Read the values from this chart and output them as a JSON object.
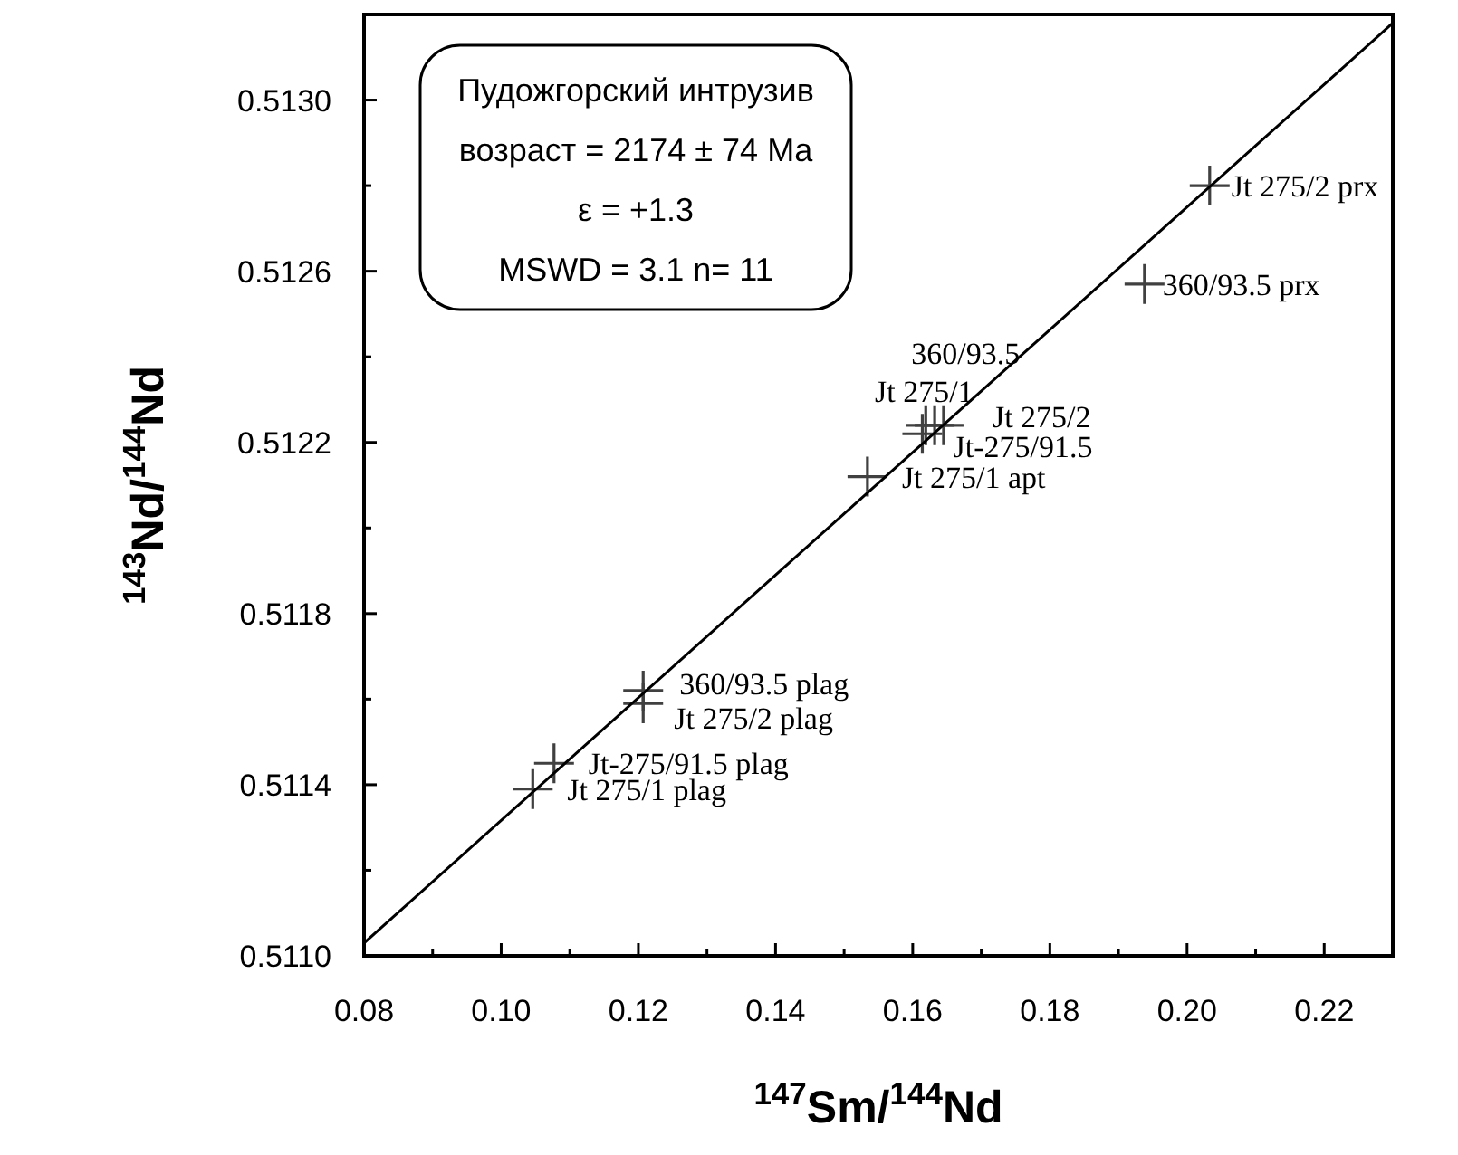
{
  "chart_data": {
    "type": "scatter",
    "xlabel": "$^{147}$Sm/$^{144}$Nd",
    "ylabel": "$^{143}$Nd/$^{144}$Nd",
    "marker": "cross",
    "grid": false,
    "xlim": [
      0.08,
      0.23
    ],
    "ylim": [
      0.511,
      0.5132
    ],
    "xticks": [
      {
        "value": 0.08,
        "label": "0.08"
      },
      {
        "value": 0.09,
        "label": null
      },
      {
        "value": 0.1,
        "label": "0.10"
      },
      {
        "value": 0.11,
        "label": null
      },
      {
        "value": 0.12,
        "label": "0.12"
      },
      {
        "value": 0.13,
        "label": null
      },
      {
        "value": 0.14,
        "label": "0.14"
      },
      {
        "value": 0.15,
        "label": null
      },
      {
        "value": 0.16,
        "label": "0.16"
      },
      {
        "value": 0.17,
        "label": null
      },
      {
        "value": 0.18,
        "label": "0.18"
      },
      {
        "value": 0.19,
        "label": null
      },
      {
        "value": 0.2,
        "label": "0.20"
      },
      {
        "value": 0.21,
        "label": null
      },
      {
        "value": 0.22,
        "label": "0.22"
      }
    ],
    "yticks": [
      {
        "value": 0.511,
        "label": "0.5110"
      },
      {
        "value": 0.5112,
        "label": null
      },
      {
        "value": 0.5114,
        "label": "0.5114"
      },
      {
        "value": 0.5116,
        "label": null
      },
      {
        "value": 0.5118,
        "label": "0.5118"
      },
      {
        "value": 0.512,
        "label": null
      },
      {
        "value": 0.5122,
        "label": "0.5122"
      },
      {
        "value": 0.5124,
        "label": null
      },
      {
        "value": 0.5126,
        "label": "0.5126"
      },
      {
        "value": 0.5128,
        "label": null
      },
      {
        "value": 0.513,
        "label": "0.5130"
      },
      {
        "value": 0.5132,
        "label": null
      }
    ],
    "series": [
      {
        "color": "#404040",
        "x": [
          0.2033,
          0.1938,
          0.1619,
          0.1632,
          0.1645,
          0.1614,
          0.1534,
          0.1207,
          0.1207,
          0.1077,
          0.1046
        ],
        "values": [
          0.5128,
          0.51257,
          0.51224,
          0.51224,
          0.51224,
          0.51222,
          0.51212,
          0.51162,
          0.51159,
          0.51145,
          0.51139
        ]
      },
      {
        "type": "line",
        "marker": "none",
        "color": "#000000",
        "x": [
          0.08,
          0.23
        ],
        "values": [
          0.51103,
          0.51318
        ]
      }
    ],
    "annotations": [
      {
        "text": "Jt 275/2 prx",
        "x": 0.2033,
        "y": 0.5128
      },
      {
        "text": "360/93.5 prx",
        "x": 0.1938,
        "y": 0.51257
      },
      {
        "text": "360/93.5",
        "x": 0.1619,
        "y": 0.51224
      },
      {
        "text": "Jt 275/1",
        "x": 0.1632,
        "y": 0.51224
      },
      {
        "text": "Jt 275/2",
        "x": 0.1645,
        "y": 0.51224
      },
      {
        "text": "Jt-275/91.5",
        "x": 0.1614,
        "y": 0.51222
      },
      {
        "text": "Jt 275/1 apt",
        "x": 0.1534,
        "y": 0.51212
      },
      {
        "text": "360/93.5 plag",
        "x": 0.1207,
        "y": 0.51162
      },
      {
        "text": "Jt 275/2 plag",
        "x": 0.1207,
        "y": 0.51159
      },
      {
        "text": "Jt-275/91.5 plag",
        "x": 0.1077,
        "y": 0.51145
      },
      {
        "text": "Jt 275/1 plag",
        "x": 0.1046,
        "y": 0.51139
      },
      "Пудожгорский интрузив",
      "возраст = 2174 ± 74 Ma",
      "ε = +1.3",
      "MSWD = 3.1 n= 11"
    ]
  }
}
